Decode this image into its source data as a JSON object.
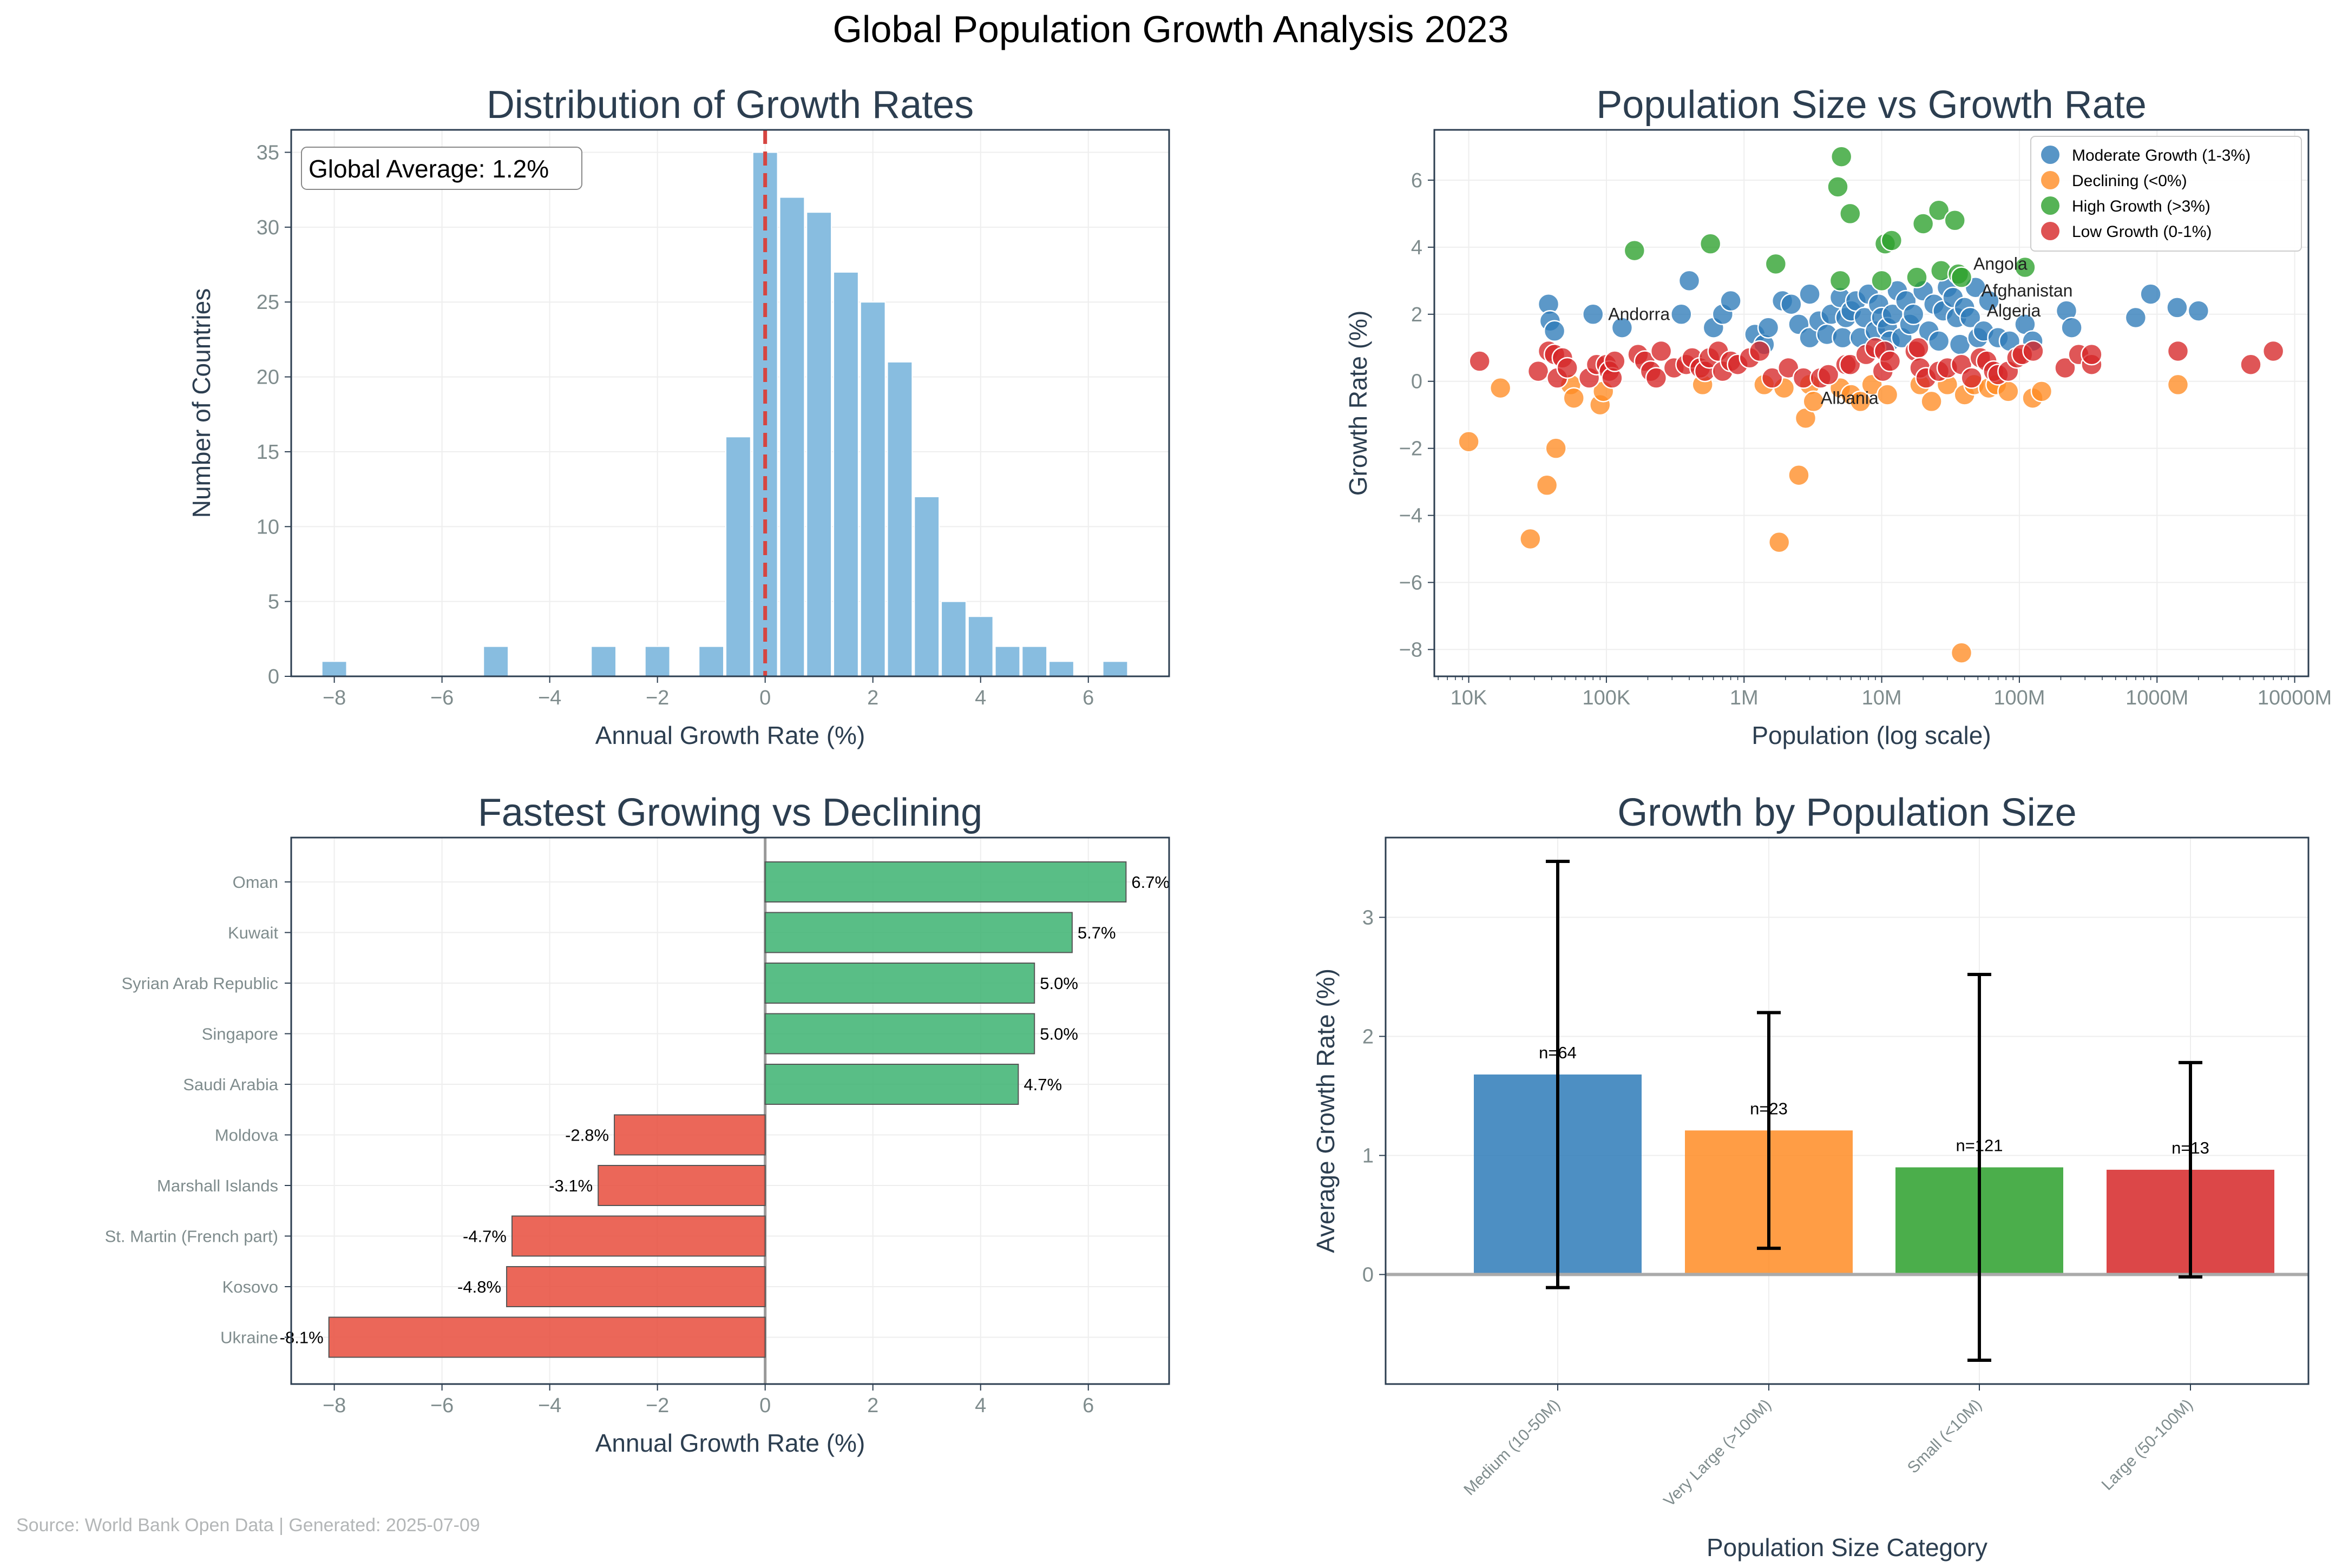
{
  "figure": {
    "title": "Global Population Growth Analysis 2023",
    "footer": "Source: World Bank Open Data | Generated: 2025-07-09"
  },
  "colors": {
    "title": "#2c3e50",
    "axis_frame": "#2c3e50",
    "tick_label": "#7f8c8d",
    "grid": "#eeeeee",
    "histogram": "#88bde0",
    "zero_line_hist": "#d64541",
    "growing_bar": "#3cb371",
    "declining_bar": "#e74c3c",
    "moderate": "#2e7bb8",
    "declining": "#ff8c24",
    "high": "#2ca02c",
    "low": "#d62728",
    "footer": "#b3b6b7"
  },
  "chart_data": [
    {
      "id": "histogram",
      "type": "bar",
      "title": "Distribution of Growth Rates",
      "xlabel": "Annual Growth Rate (%)",
      "ylabel": "Number of Countries",
      "xlim": [
        -8.8,
        7.5
      ],
      "ylim": [
        0,
        36.5
      ],
      "xticks": [
        -8,
        -6,
        -4,
        -2,
        0,
        2,
        4,
        6
      ],
      "yticks": [
        0,
        5,
        10,
        15,
        20,
        25,
        30,
        35
      ],
      "bin_width": 0.5,
      "bin_starts": [
        -8.25,
        -5.25,
        -3.25,
        -2.25,
        -1.25,
        -0.75,
        -0.25,
        0.25,
        0.75,
        1.25,
        1.75,
        2.25,
        2.75,
        3.25,
        3.75,
        4.25,
        4.75,
        5.25,
        5.75,
        6.25
      ],
      "counts": [
        1,
        2,
        2,
        2,
        2,
        16,
        35,
        32,
        31,
        27,
        25,
        21,
        12,
        5,
        4,
        2,
        2,
        1,
        0,
        1
      ],
      "vline": 0,
      "annotation": "Global Average: 1.2%",
      "grid": true
    },
    {
      "id": "scatter",
      "type": "scatter",
      "title": "Population Size vs Growth Rate",
      "xlabel": "Population (log scale)",
      "ylabel": "Growth Rate (%)",
      "xscale": "log",
      "xlim_log10": [
        3.75,
        10.1
      ],
      "ylim": [
        -8.8,
        7.5
      ],
      "xticks": [
        10000,
        100000,
        1000000,
        10000000,
        100000000,
        1000000000,
        10000000000
      ],
      "xtick_labels": [
        "10K",
        "100K",
        "1M",
        "10M",
        "100M",
        "1000M",
        "10000M"
      ],
      "yticks": [
        -8,
        -6,
        -4,
        -2,
        0,
        2,
        4,
        6
      ],
      "legend_position": "top-right",
      "grid": true,
      "series": [
        {
          "name": "Moderate Growth (1-3%)",
          "color_key": "moderate",
          "points": [
            [
              38000,
              2.3
            ],
            [
              39000,
              1.8
            ],
            [
              42000,
              1.5
            ],
            [
              80000,
              2.0
            ],
            [
              130000,
              1.6
            ],
            [
              400000,
              3.0
            ],
            [
              350000,
              2.0
            ],
            [
              600000,
              1.6
            ],
            [
              700000,
              2.0
            ],
            [
              800000,
              2.4
            ],
            [
              1200000,
              1.4
            ],
            [
              1400000,
              1.1
            ],
            [
              1500000,
              1.6
            ],
            [
              1900000,
              2.4
            ],
            [
              2200000,
              2.3
            ],
            [
              2500000,
              1.7
            ],
            [
              3000000,
              2.6
            ],
            [
              3000000,
              1.3
            ],
            [
              3500000,
              1.8
            ],
            [
              4000000,
              1.4
            ],
            [
              4300000,
              2.0
            ],
            [
              5000000,
              2.5
            ],
            [
              5200000,
              1.3
            ],
            [
              5500000,
              1.9
            ],
            [
              6000000,
              2.1
            ],
            [
              6500000,
              2.4
            ],
            [
              7000000,
              1.3
            ],
            [
              7500000,
              1.9
            ],
            [
              8000000,
              2.6
            ],
            [
              9000000,
              1.5
            ],
            [
              9500000,
              2.3
            ],
            [
              10000000,
              1.9
            ],
            [
              11000000,
              1.6
            ],
            [
              11500000,
              1.2
            ],
            [
              12000000,
              2.0
            ],
            [
              13000000,
              2.7
            ],
            [
              14000000,
              1.3
            ],
            [
              15000000,
              2.4
            ],
            [
              16000000,
              1.7
            ],
            [
              17000000,
              2.0
            ],
            [
              20000000,
              2.7
            ],
            [
              22000000,
              1.5
            ],
            [
              24000000,
              2.3
            ],
            [
              26000000,
              1.2
            ],
            [
              28000000,
              2.1
            ],
            [
              30000000,
              2.8
            ],
            [
              33000000,
              2.5
            ],
            [
              35000000,
              1.9
            ],
            [
              37000000,
              1.1
            ],
            [
              40000000,
              2.2
            ],
            [
              44000000,
              1.9
            ],
            [
              48000000,
              2.8
            ],
            [
              50000000,
              1.3
            ],
            [
              55000000,
              1.5
            ],
            [
              60000000,
              2.4
            ],
            [
              70000000,
              1.3
            ],
            [
              85000000,
              1.2
            ],
            [
              110000000,
              1.7
            ],
            [
              125000000,
              1.2
            ],
            [
              220000000,
              2.1
            ],
            [
              240000000,
              1.6
            ],
            [
              700000000,
              1.9
            ],
            [
              900000000,
              2.6
            ],
            [
              1400000000,
              2.2
            ],
            [
              2000000000,
              2.1
            ]
          ]
        },
        {
          "name": "Declining (<0%)",
          "color_key": "declining",
          "points": [
            [
              10000,
              -1.8
            ],
            [
              17000,
              -0.2
            ],
            [
              28000,
              -4.7
            ],
            [
              37000,
              -3.1
            ],
            [
              43000,
              -2.0
            ],
            [
              55000,
              -0.1
            ],
            [
              58000,
              -0.5
            ],
            [
              90000,
              -0.7
            ],
            [
              95000,
              -0.3
            ],
            [
              500000,
              -0.1
            ],
            [
              1400000,
              -0.1
            ],
            [
              1800000,
              -4.8
            ],
            [
              1950000,
              -0.2
            ],
            [
              2500000,
              -2.8
            ],
            [
              2800000,
              -1.1
            ],
            [
              3000000,
              -0.1
            ],
            [
              3200000,
              -0.6
            ],
            [
              5000000,
              -0.2
            ],
            [
              6000000,
              -0.4
            ],
            [
              7000000,
              -0.6
            ],
            [
              8500000,
              -0.1
            ],
            [
              11000000,
              -0.4
            ],
            [
              19000000,
              -0.1
            ],
            [
              23000000,
              -0.6
            ],
            [
              30000000,
              -0.1
            ],
            [
              38000000,
              -8.1
            ],
            [
              40000000,
              -0.4
            ],
            [
              47000000,
              -0.1
            ],
            [
              60000000,
              -0.2
            ],
            [
              68000000,
              -0.1
            ],
            [
              83000000,
              -0.3
            ],
            [
              125000000,
              -0.5
            ],
            [
              145000000,
              -0.3
            ],
            [
              1420000000,
              -0.1
            ]
          ]
        },
        {
          "name": "High Growth (>3%)",
          "color_key": "high",
          "points": [
            [
              160000,
              3.9
            ],
            [
              570000,
              4.1
            ],
            [
              1700000,
              3.5
            ],
            [
              4800000,
              5.8
            ],
            [
              5100000,
              6.7
            ],
            [
              5000000,
              3.0
            ],
            [
              5900000,
              5.0
            ],
            [
              10000000,
              3.0
            ],
            [
              10600000,
              4.1
            ],
            [
              11800000,
              4.2
            ],
            [
              18000000,
              3.1
            ],
            [
              20000000,
              4.7
            ],
            [
              26000000,
              5.1
            ],
            [
              27000000,
              3.3
            ],
            [
              34000000,
              4.8
            ],
            [
              36000000,
              3.2
            ],
            [
              38000000,
              3.1
            ],
            [
              110000000,
              3.4
            ]
          ]
        },
        {
          "name": "Low Growth (0-1%)",
          "color_key": "low",
          "points": [
            [
              12000,
              0.6
            ],
            [
              32000,
              0.3
            ],
            [
              38000,
              0.9
            ],
            [
              42000,
              0.8
            ],
            [
              44000,
              0.1
            ],
            [
              48000,
              0.7
            ],
            [
              52000,
              0.4
            ],
            [
              75000,
              0.1
            ],
            [
              85000,
              0.5
            ],
            [
              100000,
              0.5
            ],
            [
              105000,
              0.3
            ],
            [
              110000,
              0.1
            ],
            [
              115000,
              0.6
            ],
            [
              170000,
              0.8
            ],
            [
              190000,
              0.6
            ],
            [
              210000,
              0.3
            ],
            [
              230000,
              0.1
            ],
            [
              250000,
              0.9
            ],
            [
              310000,
              0.4
            ],
            [
              380000,
              0.5
            ],
            [
              420000,
              0.7
            ],
            [
              480000,
              0.4
            ],
            [
              520000,
              0.3
            ],
            [
              560000,
              0.7
            ],
            [
              650000,
              0.9
            ],
            [
              700000,
              0.3
            ],
            [
              800000,
              0.6
            ],
            [
              900000,
              0.5
            ],
            [
              1100000,
              0.7
            ],
            [
              1300000,
              0.9
            ],
            [
              1600000,
              0.1
            ],
            [
              2100000,
              0.4
            ],
            [
              2700000,
              0.1
            ],
            [
              3600000,
              0.1
            ],
            [
              4100000,
              0.2
            ],
            [
              5500000,
              0.5
            ],
            [
              5900000,
              0.5
            ],
            [
              7700000,
              0.8
            ],
            [
              9000000,
              1.0
            ],
            [
              10200000,
              0.3
            ],
            [
              10500000,
              0.9
            ],
            [
              11500000,
              0.6
            ],
            [
              17500000,
              0.9
            ],
            [
              18500000,
              1.0
            ],
            [
              19000000,
              0.4
            ],
            [
              21000000,
              0.1
            ],
            [
              26000000,
              0.3
            ],
            [
              30000000,
              0.4
            ],
            [
              38000000,
              0.5
            ],
            [
              45000000,
              0.1
            ],
            [
              52000000,
              0.7
            ],
            [
              58000000,
              0.6
            ],
            [
              65000000,
              0.3
            ],
            [
              70000000,
              0.2
            ],
            [
              83000000,
              0.3
            ],
            [
              96000000,
              0.7
            ],
            [
              105000000,
              0.8
            ],
            [
              126000000,
              0.9
            ],
            [
              215000000,
              0.4
            ],
            [
              270000000,
              0.8
            ],
            [
              335000000,
              0.5
            ],
            [
              335000000,
              0.8
            ],
            [
              1420000000,
              0.9
            ],
            [
              4800000000,
              0.5
            ],
            [
              7000000000,
              0.9
            ]
          ]
        }
      ],
      "annotations": [
        {
          "label": "Angola",
          "x": 36000000,
          "y": 3.2
        },
        {
          "label": "Afghanistan",
          "x": 41000000,
          "y": 2.4
        },
        {
          "label": "Algeria",
          "x": 45000000,
          "y": 1.8
        },
        {
          "label": "Andorra",
          "x": 80000,
          "y": 1.7
        },
        {
          "label": "Albania",
          "x": 2800000,
          "y": -0.8
        }
      ]
    },
    {
      "id": "extremes",
      "type": "bar",
      "orientation": "horizontal",
      "title": "Fastest Growing vs Declining",
      "xlabel": "Annual Growth Rate (%)",
      "xlim": [
        -8.8,
        7.5
      ],
      "xticks": [
        -8,
        -6,
        -4,
        -2,
        0,
        2,
        4,
        6
      ],
      "grid": true,
      "categories": [
        "Oman",
        "Kuwait",
        "Syrian Arab Republic",
        "Singapore",
        "Saudi Arabia",
        "Moldova",
        "Marshall Islands",
        "St. Martin (French part)",
        "Kosovo",
        "Ukraine"
      ],
      "values": [
        6.7,
        5.7,
        5.0,
        5.0,
        4.7,
        -2.8,
        -3.1,
        -4.7,
        -4.8,
        -8.1
      ],
      "value_labels": [
        "6.7%",
        "5.7%",
        "5.0%",
        "5.0%",
        "4.7%",
        "-2.8%",
        "-3.1%",
        "-4.7%",
        "-4.8%",
        "-8.1%"
      ]
    },
    {
      "id": "size_groups",
      "type": "bar",
      "title": "Growth by Population Size",
      "xlabel": "Population Size Category",
      "ylabel": "Average Growth Rate (%)",
      "ylim": [
        -0.92,
        3.67
      ],
      "yticks": [
        0,
        1,
        2,
        3
      ],
      "grid": true,
      "categories": [
        "Medium (10-50M)",
        "Very Large (>100M)",
        "Small (<10M)",
        "Large (50-100M)"
      ],
      "values": [
        1.68,
        1.21,
        0.9,
        0.88
      ],
      "errors": [
        1.79,
        0.99,
        1.62,
        0.9
      ],
      "count_labels": [
        "n=64",
        "n=23",
        "n=121",
        "n=13"
      ],
      "color_keys": [
        "moderate",
        "declining",
        "high",
        "low"
      ]
    }
  ]
}
